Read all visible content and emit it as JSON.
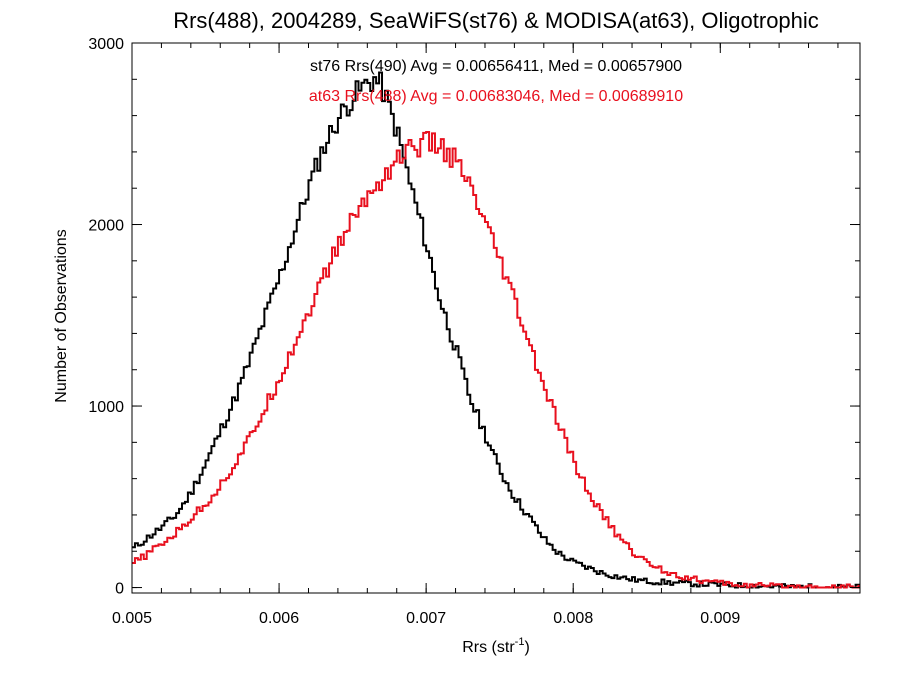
{
  "chart_data": {
    "type": "line",
    "title": "Rrs(488), 2004289, SeaWiFS(st76) & MODISA(at63), Oligotrophic",
    "xlabel": {
      "main": "Rrs (str",
      "sup": "-1",
      "tail": ")"
    },
    "ylabel": "Number of Observations",
    "xlim": [
      0.005,
      0.00995
    ],
    "ylim": [
      -30,
      3000
    ],
    "xticks": [
      0.005,
      0.006,
      0.007,
      0.008,
      0.009
    ],
    "xtick_labels": [
      "0.005",
      "0.006",
      "0.007",
      "0.008",
      "0.009"
    ],
    "yticks": [
      0,
      1000,
      2000,
      3000
    ],
    "ytick_labels": [
      "0",
      "1000",
      "2000",
      "3000"
    ],
    "grid": false,
    "step": true,
    "series": [
      {
        "name": "st76 Rrs(490) Avg = 0.00656411, Med = 0.00657900",
        "color": "#000000",
        "x": [
          0.005,
          0.0051,
          0.0052,
          0.0053,
          0.0054,
          0.0055,
          0.0056,
          0.0057,
          0.0058,
          0.0059,
          0.006,
          0.0061,
          0.0062,
          0.0063,
          0.0064,
          0.0065,
          0.0066,
          0.00665,
          0.0067,
          0.0068,
          0.0069,
          0.007,
          0.0071,
          0.0072,
          0.0073,
          0.0074,
          0.0075,
          0.0076,
          0.0077,
          0.0078,
          0.0079,
          0.008,
          0.0081,
          0.0082,
          0.0083,
          0.0084,
          0.0085,
          0.0086,
          0.0087,
          0.0088,
          0.0089,
          0.009,
          0.0091,
          0.0092,
          0.0093,
          0.0094,
          0.0095,
          0.0096,
          0.0097,
          0.0098,
          0.0099,
          0.00995
        ],
        "y": [
          210,
          270,
          330,
          400,
          520,
          680,
          860,
          1040,
          1250,
          1480,
          1700,
          1950,
          2200,
          2420,
          2580,
          2700,
          2780,
          2800,
          2760,
          2520,
          2200,
          1900,
          1570,
          1320,
          1040,
          850,
          650,
          500,
          390,
          270,
          190,
          140,
          110,
          80,
          60,
          45,
          35,
          30,
          25,
          22,
          18,
          15,
          12,
          10,
          8,
          6,
          5,
          4,
          3,
          3,
          2,
          2
        ]
      },
      {
        "name": "at63 Rrs(488) Avg = 0.00683046, Med = 0.00689910",
        "color": "#e8101e",
        "x": [
          0.005,
          0.0051,
          0.0052,
          0.0053,
          0.0054,
          0.0055,
          0.0056,
          0.0057,
          0.0058,
          0.0059,
          0.006,
          0.0061,
          0.0062,
          0.0063,
          0.0064,
          0.0065,
          0.0066,
          0.0067,
          0.0068,
          0.0069,
          0.007,
          0.0071,
          0.0072,
          0.0073,
          0.0074,
          0.0075,
          0.0076,
          0.0077,
          0.0078,
          0.0079,
          0.008,
          0.0081,
          0.0082,
          0.0083,
          0.0084,
          0.0085,
          0.0086,
          0.0087,
          0.0088,
          0.0089,
          0.009,
          0.0091,
          0.0092,
          0.0093,
          0.0094,
          0.0095,
          0.0096,
          0.0097,
          0.0098,
          0.0099,
          0.00995
        ],
        "y": [
          130,
          180,
          240,
          300,
          380,
          460,
          560,
          680,
          820,
          980,
          1150,
          1330,
          1520,
          1700,
          1880,
          2030,
          2150,
          2250,
          2360,
          2420,
          2450,
          2430,
          2350,
          2200,
          2000,
          1800,
          1580,
          1340,
          1110,
          900,
          700,
          530,
          400,
          290,
          200,
          140,
          100,
          70,
          50,
          35,
          25,
          18,
          12,
          9,
          7,
          5,
          4,
          3,
          3,
          2,
          2
        ]
      }
    ]
  }
}
